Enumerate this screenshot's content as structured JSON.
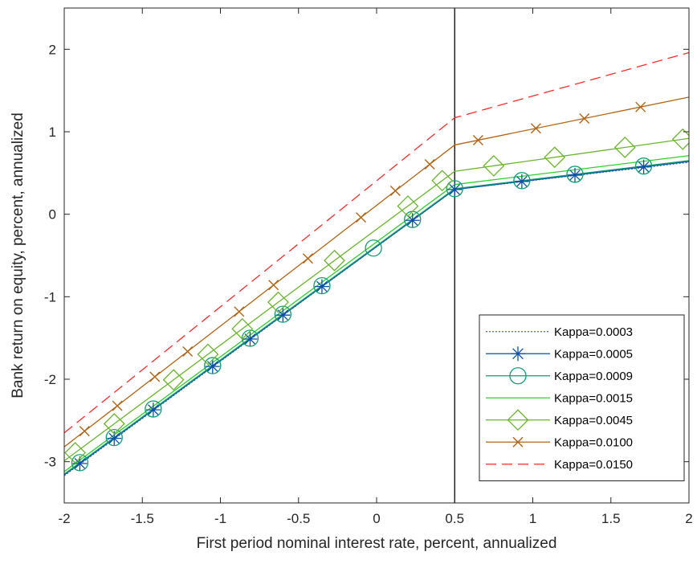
{
  "chart_data": {
    "type": "line",
    "title": "",
    "xlabel": "First period nominal interest rate, percent, annualized",
    "ylabel": "Bank return on equity, percent, annualized",
    "xlim": [
      -2,
      2
    ],
    "ylim": [
      -3.5,
      2.5
    ],
    "xticks": [
      -2,
      -1.5,
      -1,
      -0.5,
      0,
      0.5,
      1,
      1.5,
      2
    ],
    "xtick_labels": [
      "-2",
      "-1.5",
      "-1",
      "-0.5",
      "0",
      "0.5",
      "1",
      "1.5",
      "2"
    ],
    "yticks": [
      -3,
      -2,
      -1,
      0,
      1,
      2
    ],
    "ytick_labels": [
      "-3",
      "-2",
      "-1",
      "0",
      "1",
      "2"
    ],
    "grid": false,
    "legend_position": "bottom-right",
    "vertical_line_x": 0.5,
    "x": [
      -2,
      0.5,
      2
    ],
    "series": [
      {
        "name": "Kappa=0.0003",
        "values": [
          -3.17,
          0.3,
          0.63
        ],
        "color": "#4a5fd0",
        "line_style": "dotted",
        "marker": "none",
        "marker_x": []
      },
      {
        "name": "Kappa=0.0005",
        "values": [
          -3.16,
          0.3,
          0.64
        ],
        "color": "#0b4fa8",
        "line_style": "solid",
        "marker": "asterisk",
        "marker_x": [
          -1.9,
          -1.68,
          -1.43,
          -1.05,
          -0.81,
          -0.6,
          -0.35,
          0.23,
          0.5,
          0.93,
          1.27,
          1.71
        ]
      },
      {
        "name": "Kappa=0.0009",
        "values": [
          -3.15,
          0.31,
          0.65
        ],
        "color": "#0d9e6f",
        "line_style": "solid",
        "marker": "circle",
        "marker_x": [
          -1.9,
          -1.68,
          -1.43,
          -1.05,
          -0.81,
          -0.6,
          -0.35,
          -0.02,
          0.23,
          0.5,
          0.93,
          1.27,
          1.71
        ]
      },
      {
        "name": "Kappa=0.0015",
        "values": [
          -3.12,
          0.36,
          0.71
        ],
        "color": "#2bd12b",
        "line_style": "solid",
        "marker": "none",
        "marker_x": []
      },
      {
        "name": "Kappa=0.0045",
        "values": [
          -2.99,
          0.52,
          0.92
        ],
        "color": "#6ab42d",
        "line_style": "solid",
        "marker": "diamond",
        "marker_x": [
          -1.93,
          -1.68,
          -1.3,
          -1.08,
          -0.86,
          -0.63,
          -0.27,
          0.2,
          0.42,
          0.75,
          1.14,
          1.59,
          1.96
        ]
      },
      {
        "name": "Kappa=0.0100",
        "values": [
          -2.82,
          0.84,
          1.42
        ],
        "color": "#b06414",
        "line_style": "solid",
        "marker": "x",
        "marker_x": [
          -1.87,
          -1.66,
          -1.42,
          -1.21,
          -0.88,
          -0.66,
          -0.44,
          -0.1,
          0.12,
          0.34,
          0.65,
          1.02,
          1.33,
          1.69
        ]
      },
      {
        "name": "Kappa=0.0150",
        "values": [
          -2.65,
          1.17,
          1.96
        ],
        "color": "#ff2a2a",
        "line_style": "dashed",
        "marker": "none",
        "marker_x": []
      }
    ]
  }
}
